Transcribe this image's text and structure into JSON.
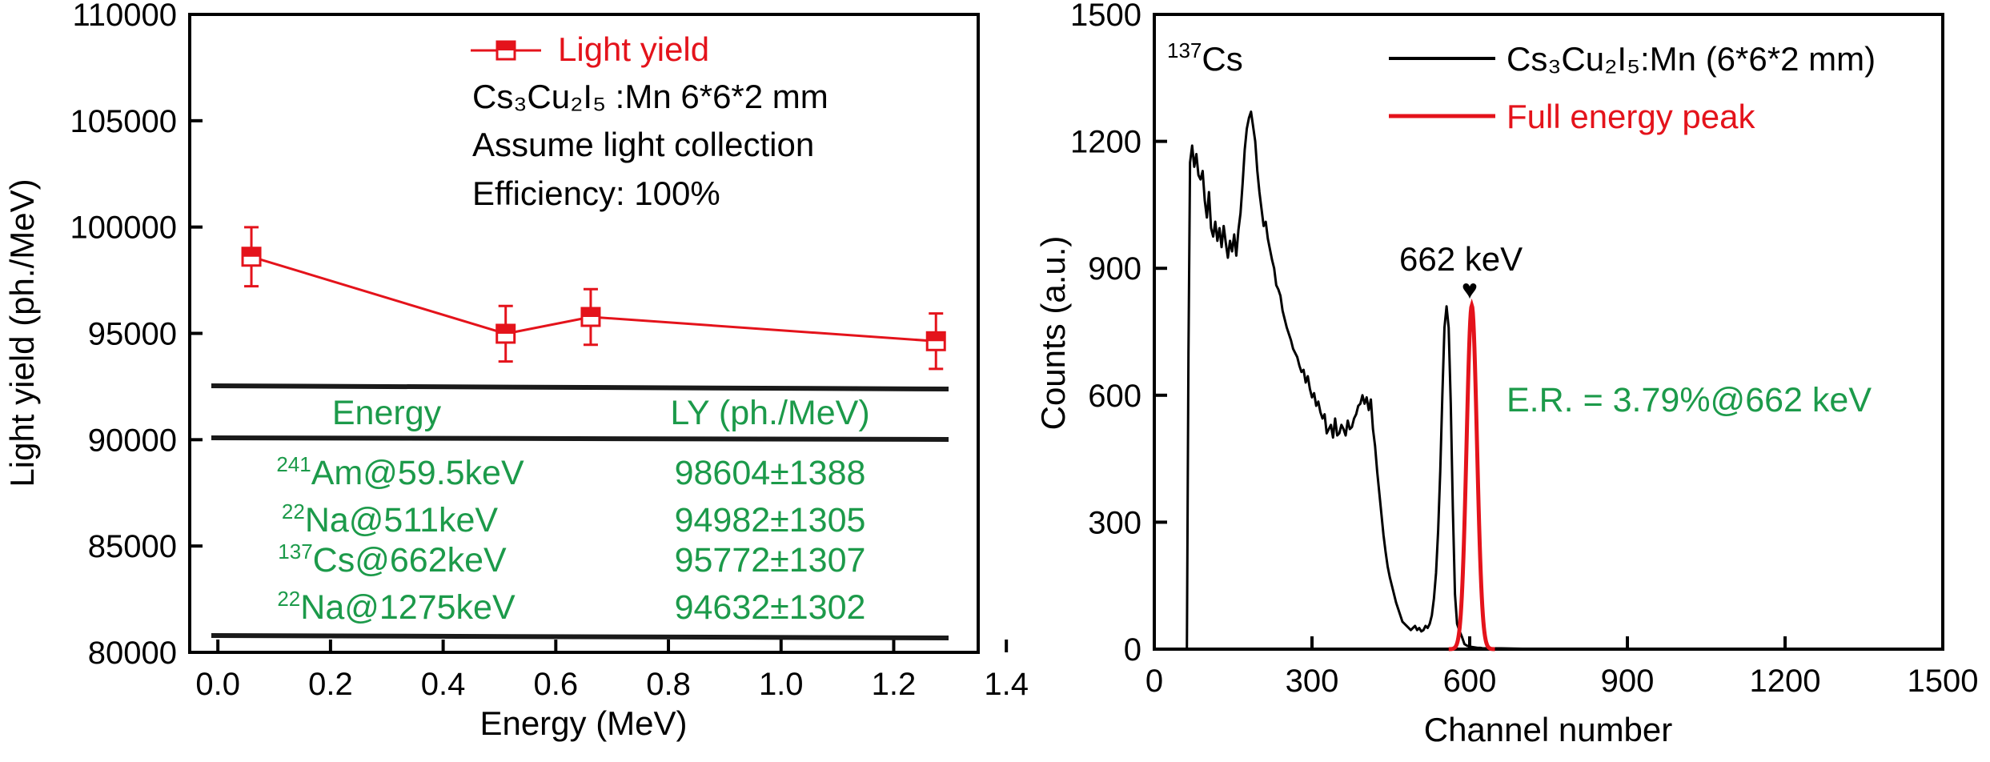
{
  "colors": {
    "axis": "#000000",
    "light_yield": "#e4131b",
    "table_text": "#1c9a4a",
    "spectrum": "#000000",
    "peak_fit": "#e4131b"
  },
  "chart_data": [
    {
      "type": "line",
      "xlabel": "Energy (MeV)",
      "ylabel": "Light yield (ph./MeV)",
      "xlim": [
        -0.05,
        1.35
      ],
      "ylim": [
        80000,
        110000
      ],
      "x_ticks": [
        "0.0",
        "0.2",
        "0.4",
        "0.6",
        "0.8",
        "1.0",
        "1.2",
        "1.4"
      ],
      "y_ticks": [
        "80000",
        "85000",
        "90000",
        "95000",
        "100000",
        "105000",
        "110000"
      ],
      "legend_position": "top-center",
      "series": [
        {
          "name": "Light yield",
          "marker": "half-filled-square",
          "x": [
            0.0595,
            0.511,
            0.662,
            1.275
          ],
          "y": [
            98604,
            94982,
            95772,
            94632
          ],
          "errors": [
            1388,
            1305,
            1307,
            1302
          ]
        }
      ],
      "annotations": [
        "Cs₃Cu₂I₅ :Mn 6*6*2 mm",
        "Assume light collection",
        "Efficiency: 100%"
      ],
      "table": {
        "headers": [
          "Energy",
          "LY (ph./MeV)"
        ],
        "rows": [
          {
            "sup": "241",
            "source": "Am@59.5keV",
            "ly": "98604±1388"
          },
          {
            "sup": "22",
            "source": "Na@511keV",
            "ly": "94982±1305"
          },
          {
            "sup": "137",
            "source": "Cs@662keV",
            "ly": "95772±1307"
          },
          {
            "sup": "22",
            "source": "Na@1275keV",
            "ly": "94632±1302"
          }
        ]
      }
    },
    {
      "type": "line",
      "xlabel": "Channel number",
      "ylabel": "Counts (a.u.)",
      "xlim": [
        0,
        1500
      ],
      "ylim": [
        0,
        1500
      ],
      "x_ticks": [
        "0",
        "300",
        "600",
        "900",
        "1200",
        "1500"
      ],
      "y_ticks": [
        "0",
        "300",
        "600",
        "900",
        "1200",
        "1500"
      ],
      "legend_position": "top-right",
      "source_label": {
        "sup": "137",
        "text": "Cs"
      },
      "series": [
        {
          "name": "Cs₃Cu₂I₅:Mn (6*6*2 mm)",
          "x": [
            50,
            62,
            65,
            68,
            72,
            76,
            80,
            84,
            88,
            92,
            96,
            100,
            104,
            108,
            112,
            116,
            120,
            124,
            128,
            132,
            136,
            140,
            144,
            148,
            152,
            156,
            160,
            164,
            168,
            172,
            176,
            180,
            184,
            188,
            192,
            196,
            200,
            204,
            208,
            212,
            216,
            220,
            224,
            228,
            232,
            236,
            240,
            244,
            248,
            252,
            256,
            260,
            264,
            268,
            272,
            276,
            280,
            284,
            288,
            292,
            296,
            300,
            304,
            308,
            312,
            316,
            320,
            324,
            328,
            332,
            336,
            340,
            344,
            348,
            352,
            356,
            360,
            364,
            368,
            372,
            376,
            380,
            384,
            388,
            392,
            396,
            400,
            404,
            408,
            412,
            416,
            420,
            424,
            428,
            432,
            436,
            440,
            444,
            448,
            452,
            456,
            460,
            464,
            468,
            472,
            476,
            480,
            484,
            488,
            492,
            496,
            500,
            504,
            508,
            512,
            516,
            520,
            524,
            528,
            532,
            536,
            540,
            544,
            548,
            552,
            556,
            560,
            564,
            568,
            572,
            576,
            580,
            585,
            590,
            595,
            600,
            605,
            610,
            615,
            620,
            625,
            630,
            640,
            660,
            700,
            800,
            900,
            1000,
            1100,
            1200,
            1300,
            1400,
            1500
          ],
          "y": [
            0,
            0,
            700,
            1150,
            1190,
            1140,
            1170,
            1120,
            1110,
            1130,
            1060,
            1020,
            1080,
            995,
            975,
            1010,
            965,
            995,
            950,
            1000,
            960,
            925,
            965,
            940,
            980,
            930,
            990,
            1030,
            1100,
            1180,
            1230,
            1255,
            1270,
            1235,
            1200,
            1130,
            1080,
            1040,
            1000,
            1010,
            970,
            945,
            920,
            900,
            860,
            850,
            835,
            800,
            780,
            760,
            745,
            730,
            710,
            700,
            690,
            670,
            655,
            660,
            630,
            645,
            615,
            595,
            605,
            575,
            585,
            560,
            545,
            555,
            510,
            520,
            530,
            500,
            545,
            505,
            510,
            530,
            520,
            505,
            540,
            520,
            525,
            545,
            555,
            575,
            580,
            600,
            580,
            595,
            565,
            590,
            520,
            480,
            420,
            370,
            320,
            270,
            230,
            195,
            170,
            150,
            130,
            110,
            95,
            80,
            65,
            60,
            55,
            50,
            45,
            50,
            55,
            45,
            50,
            42,
            45,
            55,
            50,
            60,
            80,
            120,
            180,
            280,
            420,
            600,
            760,
            810,
            760,
            580,
            330,
            130,
            60,
            45,
            30,
            12,
            8,
            6,
            5,
            4,
            3,
            3,
            2,
            2,
            2,
            2,
            1,
            1,
            1,
            1,
            1,
            1,
            1,
            1,
            1
          ],
          "color": "#000000"
        },
        {
          "name": "Full energy peak",
          "gaussian": {
            "center": 604,
            "sigma": 9.8,
            "amplitude": 812
          },
          "x_range": [
            560,
            648
          ],
          "color": "#e4131b"
        }
      ],
      "annotations": [
        "662 keV",
        "E.R. = 3.79%@662 keV"
      ]
    }
  ]
}
